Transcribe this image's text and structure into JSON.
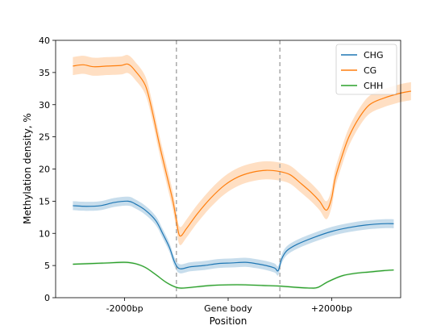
{
  "chart_data": {
    "type": "line",
    "xlabel": "Position",
    "ylabel": "Methylation density, %",
    "ylim": [
      0,
      40
    ],
    "yticks": [
      0,
      5,
      10,
      15,
      20,
      25,
      30,
      35,
      40
    ],
    "xlim": [
      -0.5,
      9.5
    ],
    "xticks": [
      {
        "x": 1.5,
        "label": "-2000bp"
      },
      {
        "x": 4.5,
        "label": "Gene body"
      },
      {
        "x": 7.5,
        "label": "+2000bp"
      }
    ],
    "boundaries": [
      3,
      6
    ],
    "legend_position": "upper right",
    "grid": false,
    "series": [
      {
        "name": "CHG",
        "color": "#1f77b4",
        "band": 0.7,
        "points": [
          [
            0,
            14.3
          ],
          [
            0.4,
            14.2
          ],
          [
            0.8,
            14.3
          ],
          [
            1.2,
            14.8
          ],
          [
            1.6,
            15.0
          ],
          [
            1.8,
            14.6
          ],
          [
            2.1,
            13.6
          ],
          [
            2.4,
            12.0
          ],
          [
            2.6,
            10.0
          ],
          [
            2.8,
            7.8
          ],
          [
            2.95,
            5.5
          ],
          [
            3.1,
            4.5
          ],
          [
            3.4,
            4.8
          ],
          [
            3.8,
            5.0
          ],
          [
            4.2,
            5.3
          ],
          [
            4.6,
            5.4
          ],
          [
            5.0,
            5.5
          ],
          [
            5.3,
            5.3
          ],
          [
            5.6,
            5.0
          ],
          [
            5.85,
            4.6
          ],
          [
            5.95,
            4.2
          ],
          [
            6.05,
            6.0
          ],
          [
            6.2,
            7.3
          ],
          [
            6.5,
            8.3
          ],
          [
            7.0,
            9.4
          ],
          [
            7.5,
            10.3
          ],
          [
            8.0,
            10.9
          ],
          [
            8.5,
            11.3
          ],
          [
            9.0,
            11.5
          ],
          [
            9.3,
            11.5
          ]
        ]
      },
      {
        "name": "CG",
        "color": "#ff7f0e",
        "band": 1.4,
        "points": [
          [
            0,
            36.0
          ],
          [
            0.3,
            36.2
          ],
          [
            0.6,
            35.9
          ],
          [
            1.0,
            36.0
          ],
          [
            1.4,
            36.1
          ],
          [
            1.6,
            36.3
          ],
          [
            1.8,
            35.3
          ],
          [
            2.1,
            33.0
          ],
          [
            2.3,
            29.0
          ],
          [
            2.5,
            24.0
          ],
          [
            2.7,
            19.5
          ],
          [
            2.9,
            15.0
          ],
          [
            3.0,
            12.0
          ],
          [
            3.1,
            9.6
          ],
          [
            3.3,
            10.8
          ],
          [
            3.6,
            13.0
          ],
          [
            4.0,
            15.5
          ],
          [
            4.4,
            17.5
          ],
          [
            4.8,
            18.8
          ],
          [
            5.2,
            19.5
          ],
          [
            5.6,
            19.8
          ],
          [
            6.0,
            19.6
          ],
          [
            6.3,
            19.1
          ],
          [
            6.6,
            17.8
          ],
          [
            6.9,
            16.4
          ],
          [
            7.15,
            15.0
          ],
          [
            7.35,
            13.6
          ],
          [
            7.5,
            15.5
          ],
          [
            7.6,
            18.5
          ],
          [
            7.8,
            22.0
          ],
          [
            8.0,
            25.0
          ],
          [
            8.3,
            28.0
          ],
          [
            8.6,
            30.0
          ],
          [
            9.0,
            31.0
          ],
          [
            9.5,
            31.8
          ],
          [
            9.8,
            32.1
          ]
        ]
      },
      {
        "name": "CHH",
        "color": "#2ca02c",
        "band": 0.15,
        "points": [
          [
            0,
            5.2
          ],
          [
            0.5,
            5.3
          ],
          [
            1.0,
            5.4
          ],
          [
            1.5,
            5.5
          ],
          [
            1.8,
            5.3
          ],
          [
            2.1,
            4.7
          ],
          [
            2.4,
            3.6
          ],
          [
            2.7,
            2.4
          ],
          [
            3.0,
            1.6
          ],
          [
            3.2,
            1.5
          ],
          [
            3.6,
            1.7
          ],
          [
            4.0,
            1.9
          ],
          [
            4.5,
            2.0
          ],
          [
            5.0,
            2.0
          ],
          [
            5.5,
            1.9
          ],
          [
            6.0,
            1.8
          ],
          [
            6.5,
            1.6
          ],
          [
            6.9,
            1.5
          ],
          [
            7.1,
            1.6
          ],
          [
            7.4,
            2.5
          ],
          [
            7.8,
            3.4
          ],
          [
            8.2,
            3.8
          ],
          [
            8.6,
            4.0
          ],
          [
            9.0,
            4.2
          ],
          [
            9.3,
            4.3
          ]
        ]
      }
    ]
  }
}
